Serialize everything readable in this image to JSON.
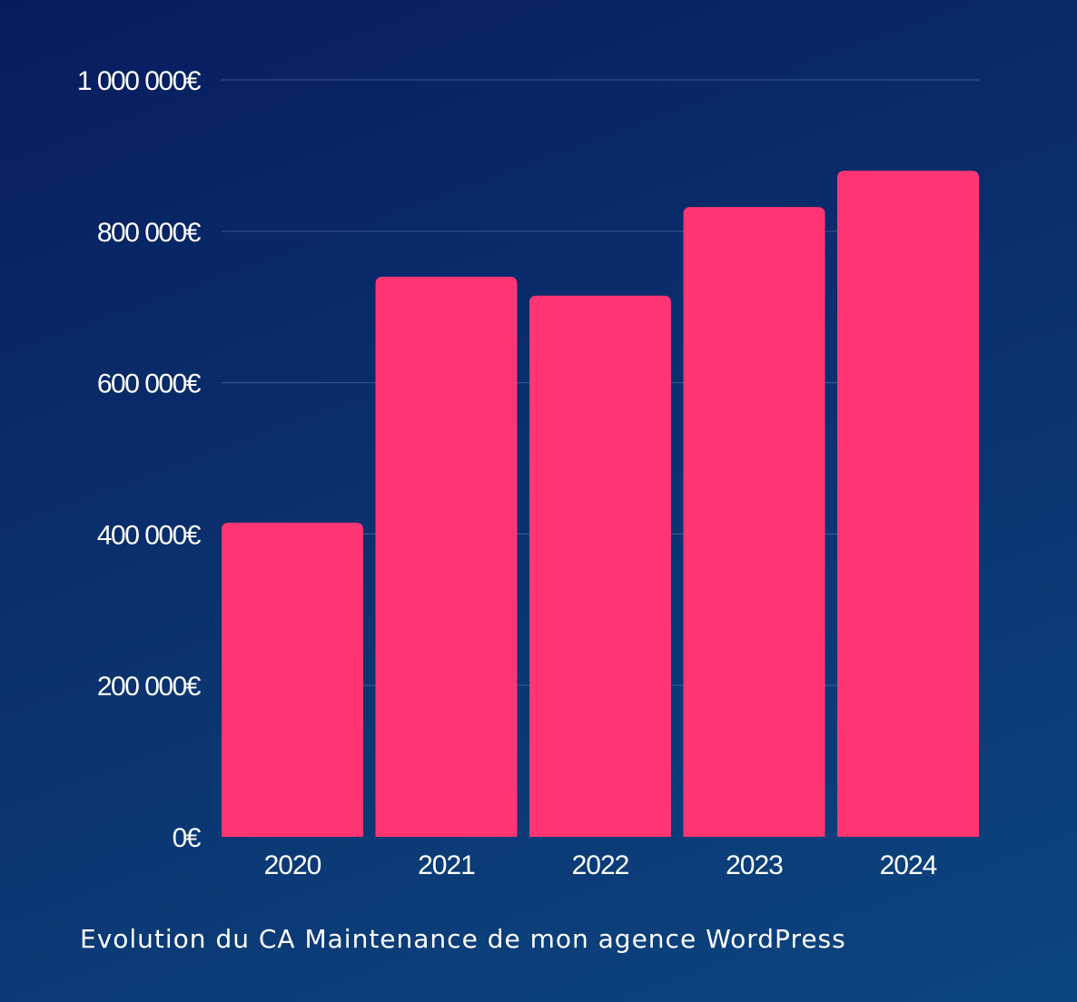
{
  "chart_data": {
    "type": "bar",
    "title": "Evolution du CA Maintenance de mon agence WordPress",
    "xlabel": "",
    "ylabel": "",
    "categories": [
      "2020",
      "2021",
      "2022",
      "2023",
      "2024"
    ],
    "values": [
      415000,
      740000,
      715000,
      832000,
      880000
    ],
    "ylim": [
      0,
      1000000
    ],
    "yticks": [
      0,
      200000,
      400000,
      600000,
      800000,
      1000000
    ],
    "ytick_labels": [
      "0€",
      "200 000€",
      "400 000€",
      "600 000€",
      "800 000€",
      "1 000 000€"
    ],
    "grid": true,
    "legend": "none",
    "colors": {
      "bar": "#ff3574",
      "grid": "#5a6fb0",
      "text": "#ffffff",
      "background_top": "#071c5e",
      "background_bottom": "#0c4580"
    }
  }
}
